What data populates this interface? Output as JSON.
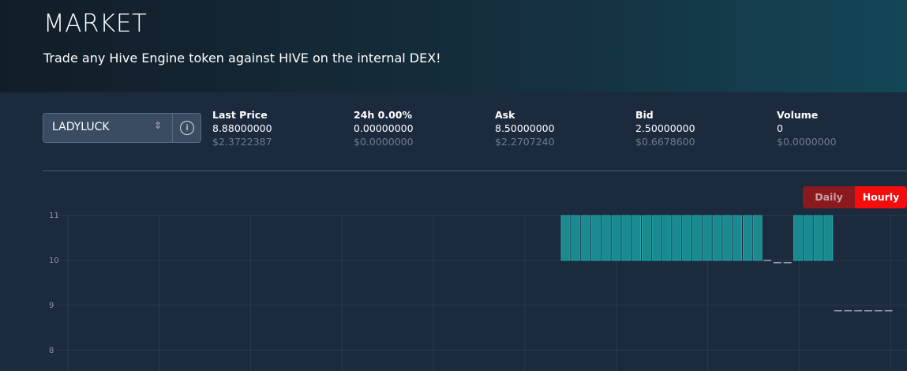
{
  "header": {
    "title": "MARKET",
    "subtitle": "Trade any Hive Engine token against HIVE on the internal DEX!"
  },
  "token_select": {
    "value": "LADYLUCK"
  },
  "stats": [
    {
      "label": "Last Price",
      "value": "8.88000000",
      "usd": "$2.3722387"
    },
    {
      "label": "24h 0.00%",
      "value": "0.00000000",
      "usd": "$0.0000000"
    },
    {
      "label": "Ask",
      "value": "8.50000000",
      "usd": "$2.2707240"
    },
    {
      "label": "Bid",
      "value": "2.50000000",
      "usd": "$0.6678600"
    },
    {
      "label": "Volume",
      "value": "0",
      "usd": "$0.0000000"
    }
  ],
  "toggle": {
    "options": [
      "Daily",
      "Hourly"
    ],
    "active": 1
  },
  "chart": {
    "type": "candlestick",
    "up_color": "#1a8a8f",
    "open": [
      10,
      10,
      10,
      10,
      10,
      10,
      10,
      10,
      10,
      10,
      10,
      10,
      10,
      10,
      10,
      10,
      10,
      10,
      10,
      10,
      10,
      9.95,
      9.95,
      10,
      10,
      10,
      10,
      8.88,
      8.88,
      8.88,
      8.88,
      8.88,
      8.88
    ],
    "close": [
      11,
      11,
      11,
      11,
      11,
      11,
      11,
      11,
      11,
      11,
      11,
      11,
      11,
      11,
      11,
      11,
      11,
      11,
      11,
      11,
      10,
      9.95,
      9.95,
      11,
      11,
      11,
      11,
      8.88,
      8.88,
      8.88,
      8.88,
      8.88,
      8.88
    ],
    "ylim": [
      7.54,
      11
    ],
    "yticks": [
      8,
      9,
      10,
      11
    ],
    "grid": true
  }
}
